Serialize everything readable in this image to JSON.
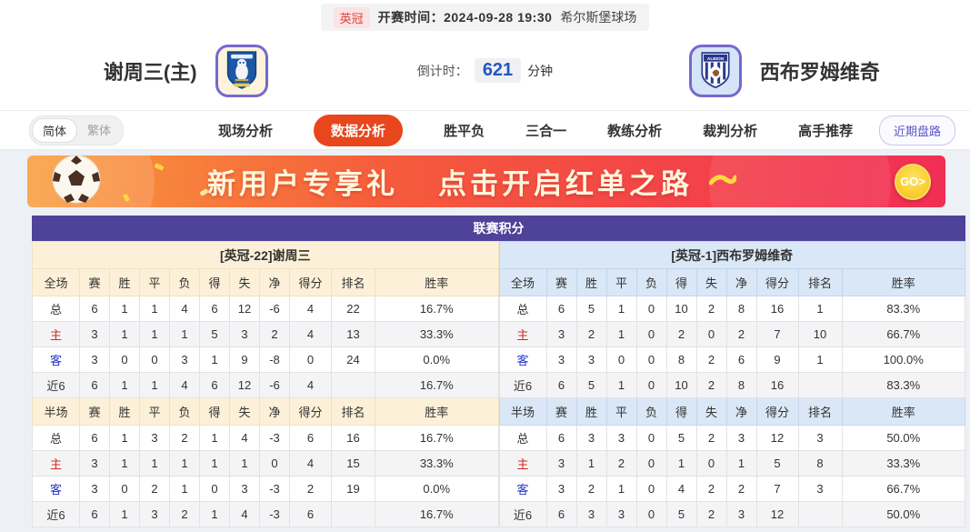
{
  "topbar": {
    "league": "英冠",
    "kickoff_label": "开赛时间：",
    "kickoff_time": "2024-09-28 19:30",
    "venue": "希尔斯堡球场"
  },
  "header": {
    "home_name": "谢周三(主)",
    "away_name": "西布罗姆维奇",
    "countdown_label": "倒计时：",
    "countdown_value": "621",
    "countdown_unit": "分钟"
  },
  "nav": {
    "lang_simplified": "简体",
    "lang_traditional": "繁体",
    "items": [
      {
        "label": "现场分析",
        "active": false
      },
      {
        "label": "数据分析",
        "active": true
      },
      {
        "label": "胜平负",
        "active": false
      },
      {
        "label": "三合一",
        "active": false
      },
      {
        "label": "教练分析",
        "active": false
      },
      {
        "label": "裁判分析",
        "active": false
      },
      {
        "label": "高手推荐",
        "active": false
      }
    ],
    "right_button": "近期盘路"
  },
  "banner": {
    "text1": "新用户专享礼",
    "text2": "点击开启红单之路",
    "go_label": "GO>"
  },
  "table": {
    "title": "联赛积分",
    "home": {
      "section_title": "[英冠-22]谢周三",
      "full_header": [
        "全场",
        "赛",
        "胜",
        "平",
        "负",
        "得",
        "失",
        "净",
        "得分",
        "排名",
        "胜率"
      ],
      "full_rows": [
        [
          "总",
          "6",
          "1",
          "1",
          "4",
          "6",
          "12",
          "-6",
          "4",
          "22",
          "16.7%"
        ],
        [
          "主",
          "3",
          "1",
          "1",
          "1",
          "5",
          "3",
          "2",
          "4",
          "13",
          "33.3%"
        ],
        [
          "客",
          "3",
          "0",
          "0",
          "3",
          "1",
          "9",
          "-8",
          "0",
          "24",
          "0.0%"
        ],
        [
          "近6",
          "6",
          "1",
          "1",
          "4",
          "6",
          "12",
          "-6",
          "4",
          "",
          "16.7%"
        ]
      ],
      "half_header": [
        "半场",
        "赛",
        "胜",
        "平",
        "负",
        "得",
        "失",
        "净",
        "得分",
        "排名",
        "胜率"
      ],
      "half_rows": [
        [
          "总",
          "6",
          "1",
          "3",
          "2",
          "1",
          "4",
          "-3",
          "6",
          "16",
          "16.7%"
        ],
        [
          "主",
          "3",
          "1",
          "1",
          "1",
          "1",
          "1",
          "0",
          "4",
          "15",
          "33.3%"
        ],
        [
          "客",
          "3",
          "0",
          "2",
          "1",
          "0",
          "3",
          "-3",
          "2",
          "19",
          "0.0%"
        ],
        [
          "近6",
          "6",
          "1",
          "3",
          "2",
          "1",
          "4",
          "-3",
          "6",
          "",
          "16.7%"
        ]
      ]
    },
    "away": {
      "section_title": "[英冠-1]西布罗姆维奇",
      "full_header": [
        "全场",
        "赛",
        "胜",
        "平",
        "负",
        "得",
        "失",
        "净",
        "得分",
        "排名",
        "胜率"
      ],
      "full_rows": [
        [
          "总",
          "6",
          "5",
          "1",
          "0",
          "10",
          "2",
          "8",
          "16",
          "1",
          "83.3%"
        ],
        [
          "主",
          "3",
          "2",
          "1",
          "0",
          "2",
          "0",
          "2",
          "7",
          "10",
          "66.7%"
        ],
        [
          "客",
          "3",
          "3",
          "0",
          "0",
          "8",
          "2",
          "6",
          "9",
          "1",
          "100.0%"
        ],
        [
          "近6",
          "6",
          "5",
          "1",
          "0",
          "10",
          "2",
          "8",
          "16",
          "",
          "83.3%"
        ]
      ],
      "half_header": [
        "半场",
        "赛",
        "胜",
        "平",
        "负",
        "得",
        "失",
        "净",
        "得分",
        "排名",
        "胜率"
      ],
      "half_rows": [
        [
          "总",
          "6",
          "3",
          "3",
          "0",
          "5",
          "2",
          "3",
          "12",
          "3",
          "50.0%"
        ],
        [
          "主",
          "3",
          "1",
          "2",
          "0",
          "1",
          "0",
          "1",
          "5",
          "8",
          "33.3%"
        ],
        [
          "客",
          "3",
          "2",
          "1",
          "0",
          "4",
          "2",
          "2",
          "7",
          "3",
          "66.7%"
        ],
        [
          "近6",
          "6",
          "3",
          "3",
          "0",
          "5",
          "2",
          "3",
          "12",
          "",
          "50.0%"
        ]
      ]
    }
  },
  "colors": {
    "accent": "#e8461d",
    "purple": "#4f4299",
    "countdown_blue": "#2058c0",
    "home_section_bg": "#fcf0d8",
    "away_section_bg": "#d9e7f6",
    "banner_gradient_start": "#f99d3b",
    "banner_gradient_end": "#f12e55",
    "home_label_red": "#d42b22",
    "away_label_blue": "#2438c8"
  }
}
